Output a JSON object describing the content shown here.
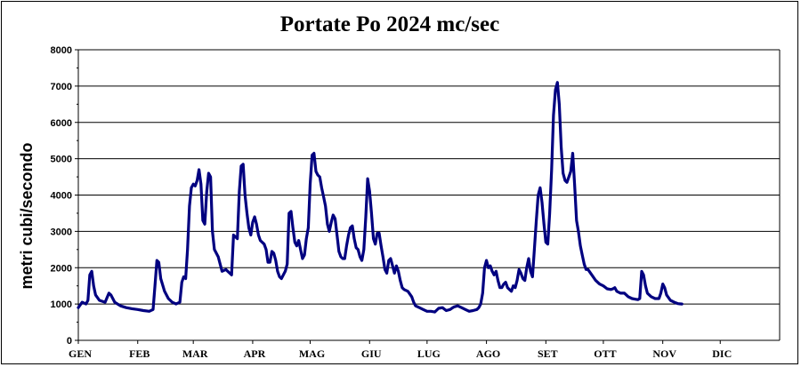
{
  "chart_data": {
    "type": "line",
    "title": "Portate Po 2024 mc/sec",
    "xlabel": "",
    "ylabel": "metri cubi/secondo",
    "ylim": [
      0,
      8000
    ],
    "yticks": [
      0,
      1000,
      2000,
      3000,
      4000,
      5000,
      6000,
      7000,
      8000
    ],
    "grid": "horizontal",
    "legend": "none",
    "line_color": "#000080",
    "month_labels": [
      "GEN",
      "FEB",
      "MAR",
      "APR",
      "MAG",
      "GIU",
      "LUG",
      "AGO",
      "SET",
      "OTT",
      "NOV",
      "DIC"
    ],
    "month_start_day": [
      0,
      31,
      60,
      91,
      121,
      152,
      182,
      213,
      244,
      274,
      305,
      335
    ],
    "days_in_year": 366,
    "series": [
      {
        "name": "",
        "points": [
          [
            0,
            900
          ],
          [
            2,
            1050
          ],
          [
            4,
            1000
          ],
          [
            5,
            1100
          ],
          [
            6,
            1800
          ],
          [
            7,
            1900
          ],
          [
            8,
            1500
          ],
          [
            9,
            1250
          ],
          [
            11,
            1100
          ],
          [
            14,
            1050
          ],
          [
            16,
            1300
          ],
          [
            17,
            1250
          ],
          [
            19,
            1050
          ],
          [
            22,
            950
          ],
          [
            25,
            900
          ],
          [
            28,
            870
          ],
          [
            31,
            850
          ],
          [
            34,
            820
          ],
          [
            37,
            800
          ],
          [
            39,
            850
          ],
          [
            40,
            1500
          ],
          [
            41,
            2200
          ],
          [
            42,
            2150
          ],
          [
            43,
            1700
          ],
          [
            45,
            1350
          ],
          [
            47,
            1150
          ],
          [
            49,
            1050
          ],
          [
            51,
            1000
          ],
          [
            53,
            1050
          ],
          [
            54,
            1600
          ],
          [
            55,
            1750
          ],
          [
            56,
            1700
          ],
          [
            57,
            2500
          ],
          [
            58,
            3700
          ],
          [
            59,
            4200
          ],
          [
            60,
            4300
          ],
          [
            61,
            4250
          ],
          [
            62,
            4400
          ],
          [
            63,
            4700
          ],
          [
            64,
            4300
          ],
          [
            65,
            3300
          ],
          [
            66,
            3200
          ],
          [
            67,
            4100
          ],
          [
            68,
            4600
          ],
          [
            69,
            4500
          ],
          [
            70,
            3000
          ],
          [
            71,
            2500
          ],
          [
            73,
            2300
          ],
          [
            75,
            1900
          ],
          [
            77,
            1950
          ],
          [
            79,
            1850
          ],
          [
            80,
            1800
          ],
          [
            81,
            2900
          ],
          [
            83,
            2800
          ],
          [
            84,
            4100
          ],
          [
            85,
            4800
          ],
          [
            86,
            4850
          ],
          [
            87,
            4000
          ],
          [
            88,
            3500
          ],
          [
            89,
            3100
          ],
          [
            90,
            2900
          ],
          [
            91,
            3250
          ],
          [
            92,
            3400
          ],
          [
            93,
            3200
          ],
          [
            94,
            2900
          ],
          [
            95,
            2750
          ],
          [
            97,
            2650
          ],
          [
            98,
            2500
          ],
          [
            99,
            2150
          ],
          [
            100,
            2150
          ],
          [
            101,
            2450
          ],
          [
            102,
            2400
          ],
          [
            103,
            2200
          ],
          [
            104,
            1900
          ],
          [
            105,
            1750
          ],
          [
            106,
            1700
          ],
          [
            108,
            1900
          ],
          [
            109,
            2100
          ],
          [
            110,
            3500
          ],
          [
            111,
            3550
          ],
          [
            112,
            3100
          ],
          [
            113,
            2700
          ],
          [
            114,
            2600
          ],
          [
            115,
            2750
          ],
          [
            116,
            2500
          ],
          [
            117,
            2250
          ],
          [
            118,
            2350
          ],
          [
            119,
            2800
          ],
          [
            120,
            3100
          ],
          [
            121,
            4300
          ],
          [
            122,
            5100
          ],
          [
            123,
            5150
          ],
          [
            124,
            4650
          ],
          [
            125,
            4550
          ],
          [
            126,
            4500
          ],
          [
            127,
            4200
          ],
          [
            128,
            3950
          ],
          [
            129,
            3700
          ],
          [
            130,
            3200
          ],
          [
            131,
            3000
          ],
          [
            132,
            3250
          ],
          [
            133,
            3450
          ],
          [
            134,
            3350
          ],
          [
            135,
            2900
          ],
          [
            136,
            2450
          ],
          [
            137,
            2300
          ],
          [
            138,
            2250
          ],
          [
            139,
            2250
          ],
          [
            140,
            2600
          ],
          [
            141,
            2900
          ],
          [
            142,
            3100
          ],
          [
            143,
            3150
          ],
          [
            144,
            2800
          ],
          [
            145,
            2550
          ],
          [
            146,
            2500
          ],
          [
            147,
            2300
          ],
          [
            148,
            2200
          ],
          [
            149,
            2500
          ],
          [
            150,
            3400
          ],
          [
            151,
            4450
          ],
          [
            152,
            4100
          ],
          [
            153,
            3500
          ],
          [
            154,
            2800
          ],
          [
            155,
            2650
          ],
          [
            156,
            2950
          ],
          [
            157,
            2950
          ],
          [
            158,
            2600
          ],
          [
            159,
            2300
          ],
          [
            160,
            1950
          ],
          [
            161,
            1850
          ],
          [
            162,
            2200
          ],
          [
            163,
            2250
          ],
          [
            164,
            2050
          ],
          [
            165,
            1850
          ],
          [
            166,
            2050
          ],
          [
            167,
            1900
          ],
          [
            168,
            1650
          ],
          [
            169,
            1450
          ],
          [
            170,
            1400
          ],
          [
            172,
            1350
          ],
          [
            174,
            1200
          ],
          [
            175,
            1050
          ],
          [
            176,
            950
          ],
          [
            178,
            900
          ],
          [
            180,
            850
          ],
          [
            182,
            800
          ],
          [
            184,
            800
          ],
          [
            186,
            780
          ],
          [
            188,
            880
          ],
          [
            190,
            900
          ],
          [
            192,
            820
          ],
          [
            194,
            850
          ],
          [
            196,
            920
          ],
          [
            198,
            950
          ],
          [
            200,
            900
          ],
          [
            202,
            850
          ],
          [
            204,
            800
          ],
          [
            206,
            820
          ],
          [
            208,
            850
          ],
          [
            209,
            900
          ],
          [
            210,
            1000
          ],
          [
            211,
            1300
          ],
          [
            212,
            2000
          ],
          [
            213,
            2200
          ],
          [
            214,
            2000
          ],
          [
            215,
            2050
          ],
          [
            216,
            1900
          ],
          [
            217,
            1800
          ],
          [
            218,
            1900
          ],
          [
            219,
            1650
          ],
          [
            220,
            1450
          ],
          [
            221,
            1450
          ],
          [
            222,
            1550
          ],
          [
            223,
            1600
          ],
          [
            224,
            1450
          ],
          [
            225,
            1400
          ],
          [
            226,
            1350
          ],
          [
            227,
            1500
          ],
          [
            228,
            1450
          ],
          [
            229,
            1650
          ],
          [
            230,
            1950
          ],
          [
            231,
            1850
          ],
          [
            232,
            1700
          ],
          [
            233,
            1650
          ],
          [
            234,
            2000
          ],
          [
            235,
            2250
          ],
          [
            236,
            1900
          ],
          [
            237,
            1750
          ],
          [
            238,
            2500
          ],
          [
            239,
            3300
          ],
          [
            240,
            4000
          ],
          [
            241,
            4200
          ],
          [
            242,
            3800
          ],
          [
            243,
            3200
          ],
          [
            244,
            2700
          ],
          [
            245,
            2650
          ],
          [
            246,
            3500
          ],
          [
            247,
            4700
          ],
          [
            248,
            6200
          ],
          [
            249,
            6900
          ],
          [
            250,
            7100
          ],
          [
            251,
            6500
          ],
          [
            252,
            5300
          ],
          [
            253,
            4600
          ],
          [
            254,
            4400
          ],
          [
            255,
            4350
          ],
          [
            256,
            4500
          ],
          [
            257,
            4650
          ],
          [
            258,
            5150
          ],
          [
            259,
            4300
          ],
          [
            260,
            3300
          ],
          [
            261,
            3000
          ],
          [
            262,
            2600
          ],
          [
            263,
            2350
          ],
          [
            264,
            2100
          ],
          [
            265,
            1950
          ],
          [
            266,
            1950
          ],
          [
            268,
            1800
          ],
          [
            270,
            1650
          ],
          [
            272,
            1550
          ],
          [
            274,
            1500
          ],
          [
            276,
            1420
          ],
          [
            278,
            1400
          ],
          [
            279,
            1420
          ],
          [
            280,
            1450
          ],
          [
            281,
            1350
          ],
          [
            283,
            1300
          ],
          [
            285,
            1300
          ],
          [
            287,
            1200
          ],
          [
            289,
            1150
          ],
          [
            291,
            1130
          ],
          [
            292,
            1120
          ],
          [
            293,
            1150
          ],
          [
            294,
            1900
          ],
          [
            295,
            1800
          ],
          [
            296,
            1500
          ],
          [
            297,
            1300
          ],
          [
            299,
            1200
          ],
          [
            301,
            1150
          ],
          [
            303,
            1150
          ],
          [
            304,
            1300
          ],
          [
            305,
            1550
          ],
          [
            306,
            1450
          ],
          [
            307,
            1250
          ],
          [
            309,
            1100
          ],
          [
            311,
            1050
          ],
          [
            313,
            1010
          ],
          [
            315,
            1000
          ]
        ]
      }
    ]
  }
}
